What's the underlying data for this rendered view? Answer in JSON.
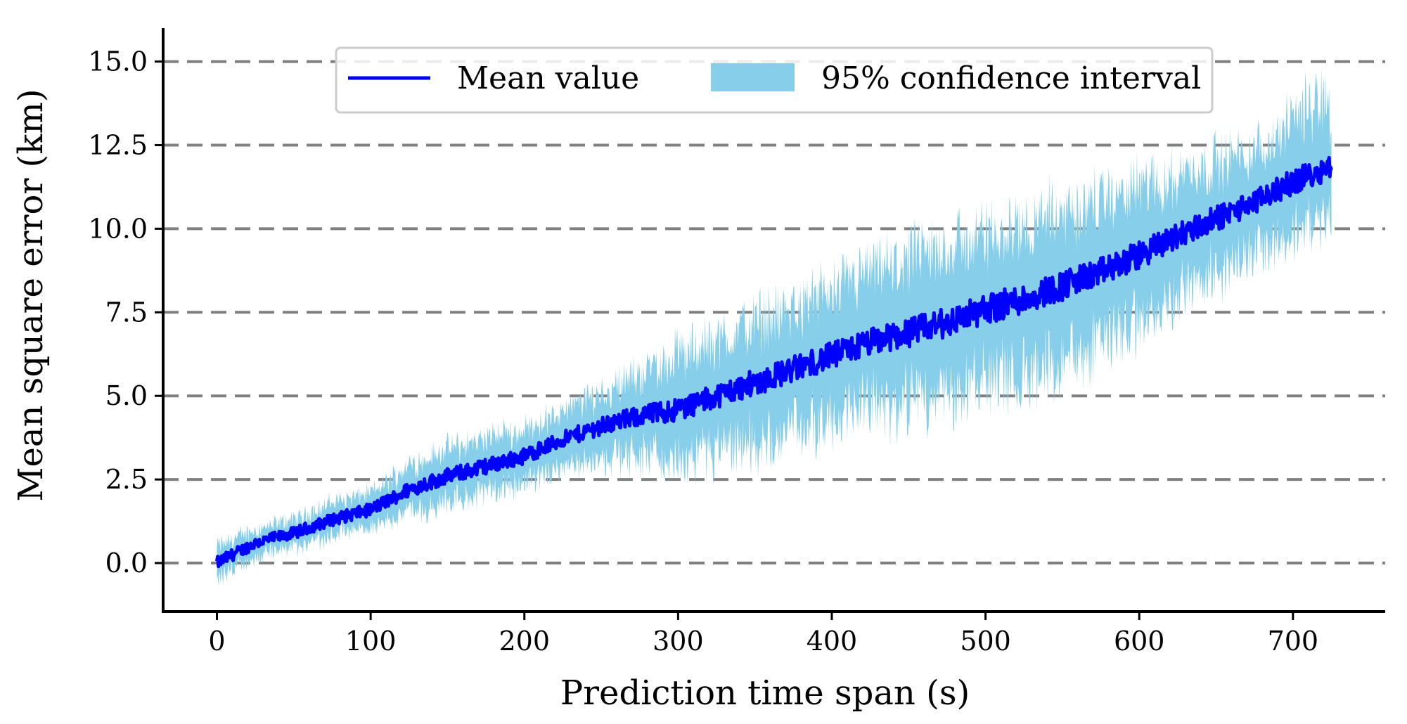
{
  "chart_data": {
    "type": "line",
    "title": "",
    "xlabel": "Prediction time span (s)",
    "ylabel": "Mean square error (km)",
    "xlim": [
      -35,
      760
    ],
    "ylim": [
      -1.45,
      16.0
    ],
    "xticks": [
      0,
      100,
      200,
      300,
      400,
      500,
      600,
      700
    ],
    "xtick_labels": [
      "0",
      "100",
      "200",
      "300",
      "400",
      "500",
      "600",
      "700"
    ],
    "yticks": [
      0.0,
      2.5,
      5.0,
      7.5,
      10.0,
      12.5,
      15.0
    ],
    "ytick_labels": [
      "0.0",
      "2.5",
      "5.0",
      "7.5",
      "10.0",
      "12.5",
      "15.0"
    ],
    "grid": "horizontal dashed",
    "legend_position": "top-center",
    "colors": {
      "mean": "#0000ff",
      "band": "#87ceeb",
      "grid": "#808080"
    },
    "series": [
      {
        "name": "Mean value",
        "x": [
          0,
          25,
          50,
          75,
          100,
          125,
          150,
          175,
          200,
          225,
          250,
          275,
          300,
          325,
          350,
          375,
          400,
          425,
          450,
          475,
          500,
          525,
          550,
          575,
          600,
          625,
          650,
          675,
          700,
          720,
          725
        ],
        "values": [
          0.0,
          0.6,
          0.9,
          1.3,
          1.6,
          2.2,
          2.6,
          2.9,
          3.2,
          3.7,
          4.1,
          4.4,
          4.6,
          5.0,
          5.4,
          5.8,
          6.2,
          6.6,
          6.9,
          7.2,
          7.6,
          7.9,
          8.3,
          8.7,
          9.2,
          9.8,
          10.3,
          10.8,
          11.4,
          11.8,
          11.9
        ]
      },
      {
        "name": "95% confidence interval",
        "x": [
          0,
          25,
          50,
          75,
          100,
          125,
          150,
          175,
          200,
          225,
          250,
          275,
          300,
          325,
          350,
          375,
          400,
          425,
          450,
          475,
          500,
          525,
          550,
          575,
          600,
          625,
          650,
          675,
          700,
          720,
          725
        ],
        "lower": [
          -0.5,
          0.2,
          0.5,
          0.8,
          1.1,
          1.5,
          1.8,
          2.1,
          2.4,
          2.9,
          3.1,
          3.2,
          3.0,
          3.4,
          3.6,
          4.0,
          4.3,
          4.6,
          4.8,
          5.0,
          5.4,
          5.7,
          6.1,
          6.6,
          7.2,
          8.0,
          8.6,
          9.3,
          9.8,
          10.2,
          10.5
        ],
        "upper": [
          0.5,
          1.0,
          1.3,
          1.8,
          2.1,
          2.9,
          3.4,
          3.7,
          4.0,
          4.5,
          5.1,
          5.6,
          6.2,
          6.6,
          7.2,
          7.6,
          8.1,
          8.6,
          9.0,
          9.4,
          9.8,
          10.1,
          10.5,
          10.8,
          11.2,
          11.6,
          12.0,
          12.3,
          13.2,
          14.0,
          13.3
        ]
      }
    ],
    "legend": [
      "Mean value",
      "95% confidence interval"
    ]
  }
}
